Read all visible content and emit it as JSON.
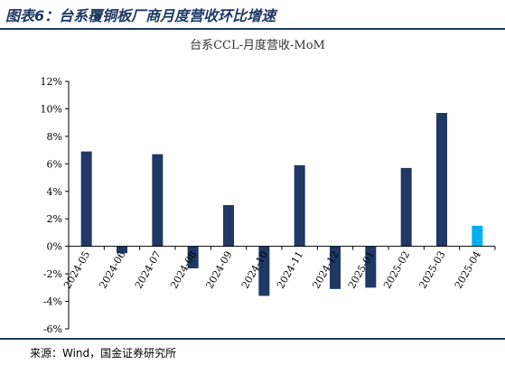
{
  "figure": {
    "title": "图表6：台系覆铜板厂商月度营收环比增速",
    "source": "来源：Wind，国金证券研究所"
  },
  "chart_data": {
    "type": "bar",
    "title": "台系CCL-月度营收-MoM",
    "xlabel": "",
    "ylabel": "",
    "categories": [
      "2024-05",
      "2024-06",
      "2024-07",
      "2024-08",
      "2024-09",
      "2024-10",
      "2024-11",
      "2024-12",
      "2025-01",
      "2025-02",
      "2025-03",
      "2025-04"
    ],
    "values": [
      6.9,
      -0.5,
      6.7,
      -1.6,
      3.0,
      -3.6,
      5.9,
      -3.1,
      -3.0,
      5.7,
      9.7,
      1.5
    ],
    "ylim": [
      -6,
      12
    ],
    "yticks": [
      "-6%",
      "-4%",
      "-2%",
      "0%",
      "2%",
      "4%",
      "6%",
      "8%",
      "10%",
      "12%"
    ],
    "colors": {
      "default": "#1f3864",
      "highlight": "#00b0f0"
    },
    "highlight_index": 11,
    "grid": false,
    "legend": "none"
  }
}
